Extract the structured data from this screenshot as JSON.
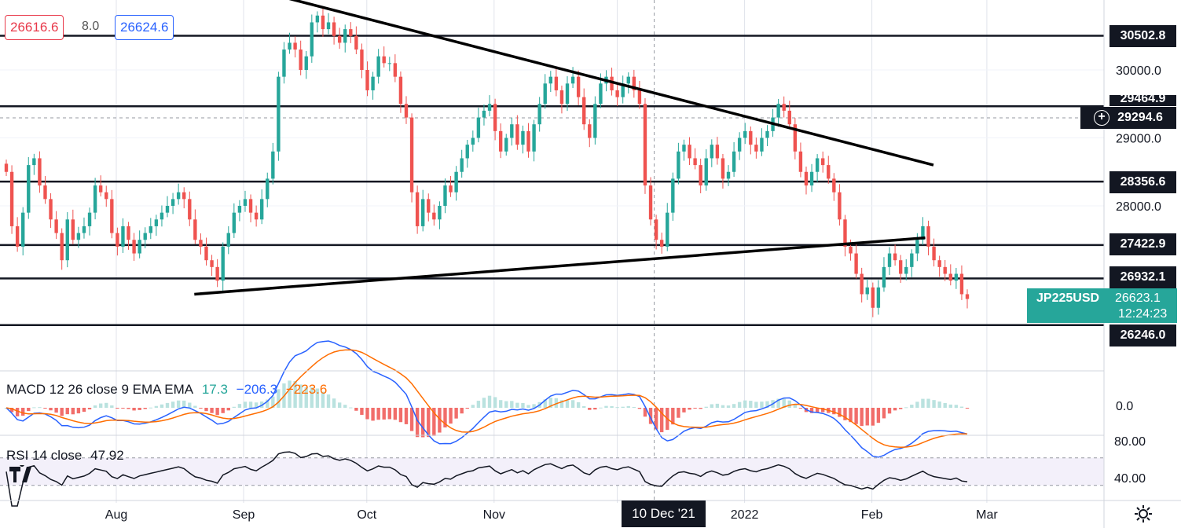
{
  "quote": {
    "sell": "26616.6",
    "spread": "8.0",
    "buy": "26624.6"
  },
  "levels": [
    {
      "value": 30502.8,
      "label": "30502.8"
    },
    {
      "value": 29464.9,
      "label": "29464.9"
    },
    {
      "value": 28356.6,
      "label": "28356.6"
    },
    {
      "value": 27422.9,
      "label": "27422.9"
    },
    {
      "value": 26932.1,
      "label": "26932.1"
    },
    {
      "value": 26246.0,
      "label": "26246.0"
    }
  ],
  "crosshair": {
    "price": "29294.6",
    "date": "10 Dec '21"
  },
  "symbol": {
    "name": "JP225USD",
    "last": "26623.1",
    "countdown": "12:24:23"
  },
  "macd": {
    "label": "MACD 12 26 close 9 EMA EMA",
    "hist": "17.3",
    "macd": "−206.3",
    "signal": "−223.6",
    "axis_label": "0.0"
  },
  "rsi": {
    "label": "RSI 14 close",
    "value": "47.92",
    "axis_labels": [
      "80.00",
      "40.00"
    ]
  },
  "colors": {
    "up": "#26a69a",
    "down": "#ef5350",
    "macd": "#2962ff",
    "signal": "#ff6d00",
    "rsi": "#131722",
    "level": "#131722"
  },
  "icons": [
    "add-icon",
    "settings-icon",
    "tradingview-logo-icon"
  ],
  "chart_data": {
    "type": "candlestick",
    "y_ticks": [
      30000,
      29000,
      28000
    ],
    "ylim": [
      25800,
      31500
    ],
    "x_ticks": [
      "Aug",
      "Sep",
      "Oct",
      "Nov",
      "Dec",
      "2022",
      "Feb",
      "Mar"
    ],
    "trendlines": [
      {
        "from": [
          "2021-09-12",
          31050
        ],
        "to": [
          "2022-02-16",
          28600
        ]
      },
      {
        "from": [
          "2021-08-20",
          26700
        ],
        "to": [
          "2022-02-14",
          27530
        ]
      }
    ],
    "close": [
      28500,
      27700,
      27400,
      27900,
      28600,
      28700,
      28300,
      28100,
      27800,
      27600,
      27200,
      27800,
      27500,
      27600,
      27700,
      27900,
      28300,
      28200,
      28100,
      27600,
      27400,
      27700,
      27500,
      27300,
      27500,
      27600,
      27700,
      27800,
      27900,
      28000,
      28100,
      28200,
      28100,
      27800,
      27500,
      27400,
      27200,
      27100,
      26900,
      27400,
      27600,
      27900,
      28000,
      28100,
      27900,
      27800,
      28100,
      28400,
      28800,
      29900,
      30300,
      30400,
      30300,
      30000,
      30200,
      30700,
      30800,
      30600,
      30700,
      30500,
      30400,
      30600,
      30500,
      30300,
      30000,
      29700,
      29900,
      30200,
      30100,
      30100,
      29900,
      29500,
      29300,
      28200,
      27700,
      28100,
      27900,
      27800,
      28000,
      28300,
      28200,
      28500,
      28700,
      28900,
      29000,
      29300,
      29400,
      29500,
      29100,
      28800,
      29000,
      29200,
      28900,
      29100,
      28800,
      29200,
      29500,
      29800,
      29900,
      29700,
      29500,
      29800,
      29900,
      29600,
      29200,
      29000,
      29500,
      29800,
      29900,
      29700,
      29600,
      29800,
      29900,
      29700,
      29500,
      28300,
      27800,
      27500,
      27400,
      27900,
      28400,
      28800,
      28900,
      28700,
      28600,
      28300,
      28700,
      28900,
      28700,
      28400,
      28500,
      28800,
      29000,
      29100,
      28900,
      28800,
      29000,
      29100,
      29300,
      29500,
      29400,
      29200,
      28800,
      28500,
      28300,
      28500,
      28700,
      28600,
      28400,
      28200,
      27800,
      27400,
      27300,
      27000,
      26700,
      26800,
      26500,
      26800,
      27100,
      27300,
      27200,
      27000,
      27100,
      27300,
      27500,
      27700,
      27400,
      27200,
      27100,
      27000,
      26900,
      27000,
      26700,
      26630
    ]
  }
}
